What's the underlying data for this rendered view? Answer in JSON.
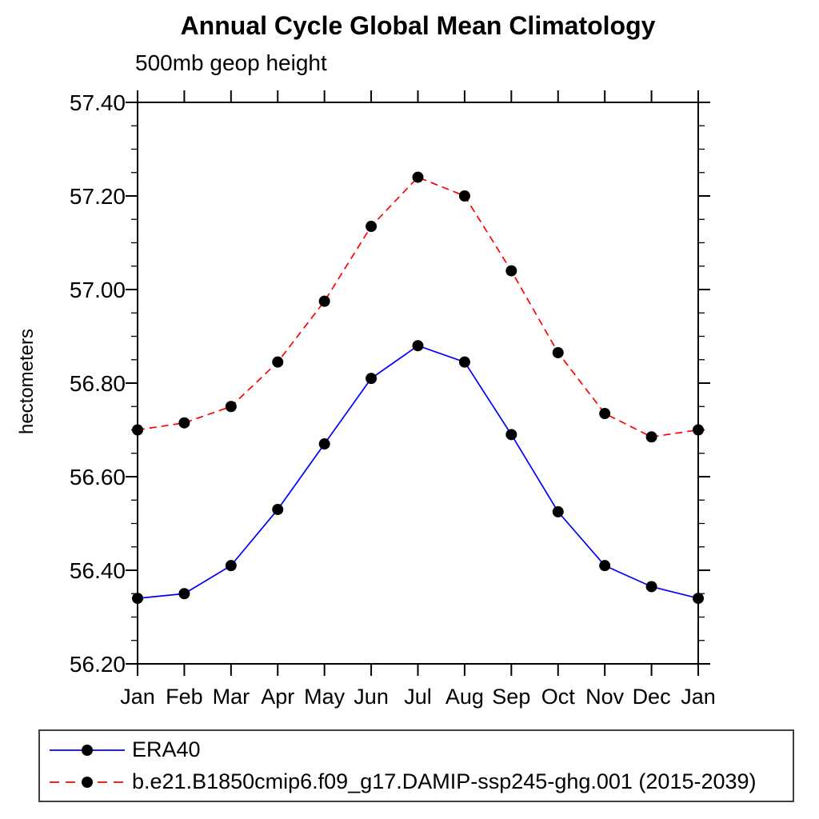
{
  "chart_data": {
    "type": "line",
    "title": "Annual Cycle Global Mean Climatology",
    "subtitle": "500mb geop height",
    "ylabel": "hectometers",
    "x_tick_labels": [
      "Jan",
      "Feb",
      "Mar",
      "Apr",
      "May",
      "Jun",
      "Jul",
      "Aug",
      "Sep",
      "Oct",
      "Nov",
      "Dec",
      "Jan"
    ],
    "ylim": [
      56.2,
      57.4
    ],
    "y_tick_labels": [
      "56.20",
      "56.40",
      "56.60",
      "56.80",
      "57.00",
      "57.20",
      "57.40"
    ],
    "y_major_interval": 0.2,
    "y_minor_interval": 0.05,
    "grid": false,
    "frame": "box",
    "legend_position": "bottom",
    "series": [
      {
        "name": "ERA40",
        "color": "#0000ff",
        "line_style": "solid",
        "marker": "filled-circle",
        "marker_color": "#000000",
        "values": [
          56.34,
          56.35,
          56.41,
          56.53,
          56.67,
          56.81,
          56.88,
          56.845,
          56.69,
          56.525,
          56.41,
          56.365,
          56.34
        ]
      },
      {
        "name": "b.e21.B1850cmip6.f09_g17.DAMIP-ssp245-ghg.001 (2015-2039)",
        "color": "#ff0000",
        "line_style": "dashed",
        "marker": "filled-circle",
        "marker_color": "#000000",
        "values": [
          56.7,
          56.715,
          56.75,
          56.845,
          56.975,
          57.135,
          57.24,
          57.2,
          57.04,
          56.865,
          56.735,
          56.685,
          56.7
        ]
      }
    ]
  },
  "legend": {
    "marker_color": "#000000",
    "items": [
      {
        "label": "ERA40",
        "color": "#0000ff",
        "line_style": "solid"
      },
      {
        "label": "b.e21.B1850cmip6.f09_g17.DAMIP-ssp245-ghg.001 (2015-2039)",
        "color": "#ff0000",
        "line_style": "dashed"
      }
    ]
  },
  "colors": {
    "background": "#ffffff",
    "axis": "#000000",
    "era40_line": "#0000ff",
    "model_line": "#ff0000",
    "marker": "#000000"
  }
}
